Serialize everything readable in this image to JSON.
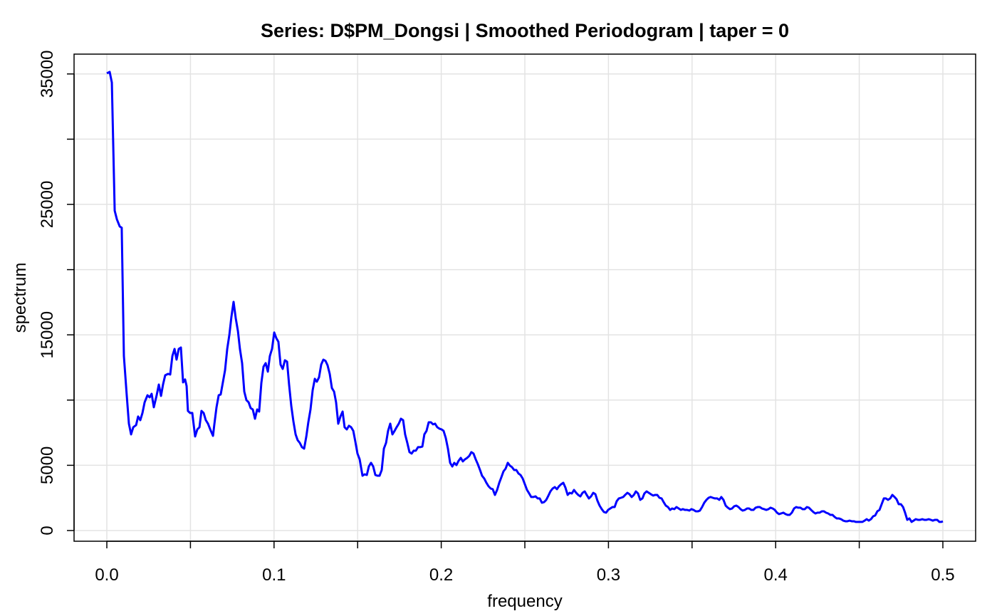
{
  "chart_data": {
    "type": "line",
    "title": "Series: D$PM_Dongsi  |  Smoothed Periodogram  |  taper = 0",
    "x_label": "frequency",
    "y_label": "spectrum",
    "color": "#0000ff",
    "grid": true,
    "xlim": [
      -0.0196,
      0.5196
    ],
    "ylim": [
      -820,
      36520
    ],
    "xticks": [
      {
        "value": 0,
        "label": "0.0"
      },
      0.1,
      0.2,
      0.3,
      0.4,
      0.5
    ],
    "minor_xticks": [
      0.05,
      0.15,
      0.25,
      0.35,
      0.45
    ],
    "yticks": [
      0,
      5000,
      15000,
      25000,
      35000
    ],
    "minor_yticks": [
      10000,
      20000,
      30000
    ],
    "x": [
      0,
      0.0017,
      0.003,
      0.0047,
      0.006,
      0.0077,
      0.0089,
      0.0102,
      0.0119,
      0.0132,
      0.0145,
      0.0158,
      0.0175,
      0.0187,
      0.02,
      0.0213,
      0.0226,
      0.0243,
      0.0256,
      0.0268,
      0.0281,
      0.0298,
      0.0311,
      0.0324,
      0.0336,
      0.0349,
      0.0366,
      0.0379,
      0.0392,
      0.0405,
      0.0417,
      0.043,
      0.0443,
      0.0456,
      0.0468,
      0.0477,
      0.0485,
      0.0498,
      0.0511,
      0.0528,
      0.0541,
      0.0554,
      0.0566,
      0.0579,
      0.0592,
      0.0605,
      0.0622,
      0.0635,
      0.0643,
      0.0656,
      0.0669,
      0.0681,
      0.0694,
      0.0707,
      0.072,
      0.0733,
      0.0745,
      0.0758,
      0.0771,
      0.0784,
      0.0796,
      0.0809,
      0.0822,
      0.0835,
      0.0848,
      0.086,
      0.0873,
      0.0886,
      0.0899,
      0.0911,
      0.0924,
      0.0937,
      0.095,
      0.0963,
      0.0975,
      0.0988,
      0.1001,
      0.1014,
      0.1026,
      0.1039,
      0.1052,
      0.1065,
      0.1078,
      0.109,
      0.1103,
      0.1116,
      0.1129,
      0.1141,
      0.1154,
      0.1167,
      0.118,
      0.1193,
      0.1205,
      0.1218,
      0.1231,
      0.1244,
      0.1256,
      0.1269,
      0.1282,
      0.1295,
      0.1308,
      0.132,
      0.1333,
      0.1346,
      0.1359,
      0.1371,
      0.1384,
      0.1397,
      0.141,
      0.1422,
      0.1435,
      0.1448,
      0.1461,
      0.1474,
      0.1486,
      0.1499,
      0.1512,
      0.1529,
      0.1542,
      0.1555,
      0.1567,
      0.158,
      0.1593,
      0.1606,
      0.1618,
      0.1631,
      0.1644,
      0.1657,
      0.167,
      0.1682,
      0.1695,
      0.1708,
      0.1721,
      0.1733,
      0.1746,
      0.1759,
      0.1772,
      0.1784,
      0.1797,
      0.181,
      0.1823,
      0.1835,
      0.1848,
      0.1861,
      0.1874,
      0.1887,
      0.1899,
      0.1912,
      0.1925,
      0.1938,
      0.1951,
      0.1963,
      0.1976,
      0.1989,
      0.2002,
      0.2014,
      0.2027,
      0.204,
      0.2053,
      0.2066,
      0.2078,
      0.2091,
      0.2104,
      0.2117,
      0.2129,
      0.2142,
      0.2155,
      0.2168,
      0.218,
      0.2193,
      0.2206,
      0.2219,
      0.2232,
      0.2244,
      0.2257,
      0.227,
      0.2283,
      0.2296,
      0.2308,
      0.2321,
      0.2334,
      0.2347,
      0.236,
      0.2372,
      0.2385,
      0.2398,
      0.2411,
      0.2423,
      0.2436,
      0.2449,
      0.2462,
      0.2474,
      0.2487,
      0.25,
      0.2513,
      0.2526,
      0.2538,
      0.2551,
      0.2564,
      0.2577,
      0.2589,
      0.2602,
      0.2615,
      0.2628,
      0.2641,
      0.2653,
      0.2666,
      0.2679,
      0.2692,
      0.2704,
      0.2717,
      0.273,
      0.2743,
      0.2756,
      0.2768,
      0.2781,
      0.2794,
      0.2807,
      0.2819,
      0.2832,
      0.2845,
      0.2858,
      0.287,
      0.2883,
      0.2896,
      0.2909,
      0.2922,
      0.2934,
      0.2947,
      0.296,
      0.2973,
      0.2986,
      0.2998,
      0.3011,
      0.3024,
      0.3037,
      0.3049,
      0.3062,
      0.3075,
      0.3088,
      0.31,
      0.3113,
      0.3126,
      0.3139,
      0.3152,
      0.3164,
      0.3177,
      0.319,
      0.3203,
      0.3215,
      0.3228,
      0.3241,
      0.3254,
      0.3267,
      0.3279,
      0.3292,
      0.3305,
      0.3318,
      0.333,
      0.3343,
      0.3356,
      0.3369,
      0.3381,
      0.3394,
      0.3407,
      0.342,
      0.3433,
      0.3445,
      0.3458,
      0.3471,
      0.3484,
      0.3496,
      0.3509,
      0.3522,
      0.3535,
      0.3547,
      0.356,
      0.3573,
      0.3586,
      0.3599,
      0.3611,
      0.3624,
      0.3637,
      0.365,
      0.3663,
      0.3675,
      0.3688,
      0.3701,
      0.3714,
      0.3727,
      0.3739,
      0.3752,
      0.3765,
      0.3778,
      0.379,
      0.3803,
      0.3816,
      0.3829,
      0.3841,
      0.3854,
      0.3867,
      0.388,
      0.3892,
      0.3905,
      0.3918,
      0.3931,
      0.3944,
      0.3957,
      0.3969,
      0.3982,
      0.3995,
      0.4008,
      0.402,
      0.4033,
      0.4046,
      0.4059,
      0.4071,
      0.4084,
      0.4097,
      0.411,
      0.4123,
      0.4135,
      0.4148,
      0.4161,
      0.4174,
      0.4187,
      0.4199,
      0.4212,
      0.4225,
      0.4238,
      0.425,
      0.4263,
      0.4276,
      0.4289,
      0.4301,
      0.4314,
      0.4327,
      0.434,
      0.4353,
      0.4365,
      0.4378,
      0.4391,
      0.4404,
      0.4417,
      0.4429,
      0.4442,
      0.4455,
      0.4468,
      0.448,
      0.4493,
      0.4506,
      0.4519,
      0.4532,
      0.4544,
      0.4557,
      0.457,
      0.4583,
      0.4595,
      0.4608,
      0.4621,
      0.4634,
      0.4647,
      0.4659,
      0.4672,
      0.4685,
      0.4698,
      0.4711,
      0.4723,
      0.4736,
      0.4749,
      0.4762,
      0.4774,
      0.4787,
      0.48,
      0.4813,
      0.4825,
      0.4838,
      0.4851,
      0.4864,
      0.4877,
      0.4889,
      0.4902,
      0.4915,
      0.4928,
      0.494,
      0.4953,
      0.4966,
      0.4979,
      0.4991,
      0.5
    ],
    "values": [
      35050,
      35160,
      34340,
      24520,
      23860,
      23310,
      23210,
      13380,
      10370,
      8190,
      7370,
      7920,
      8080,
      8740,
      8460,
      9010,
      9830,
      10370,
      10210,
      10480,
      9450,
      10370,
      11190,
      10320,
      11190,
      11900,
      12010,
      11960,
      13380,
      13920,
      13100,
      13920,
      14030,
      11360,
      11580,
      11080,
      9170,
      9010,
      9010,
      7210,
      7750,
      7920,
      9170,
      9010,
      8460,
      8190,
      7640,
      7260,
      8140,
      9450,
      10370,
      10430,
      11360,
      12290,
      13920,
      15020,
      16380,
      17530,
      16270,
      15290,
      13920,
      12830,
      10650,
      9990,
      9830,
      9390,
      9280,
      8570,
      9280,
      9120,
      11300,
      12560,
      12830,
      12180,
      13380,
      13920,
      15180,
      14740,
      14470,
      12720,
      12390,
      13050,
      12940,
      11190,
      9560,
      8350,
      7370,
      6930,
      6720,
      6390,
      6280,
      7210,
      8300,
      9280,
      10760,
      11630,
      11410,
      11740,
      12720,
      13100,
      13000,
      12670,
      12010,
      10920,
      10650,
      9830,
      8190,
      8740,
      9120,
      7920,
      7750,
      8030,
      7920,
      7640,
      6830,
      5900,
      5460,
      4200,
      4310,
      4260,
      4910,
      5190,
      4910,
      4260,
      4200,
      4200,
      4640,
      6280,
      6720,
      7640,
      8190,
      7370,
      7640,
      7920,
      8190,
      8570,
      8460,
      7370,
      6720,
      6010,
      5900,
      6120,
      6120,
      6390,
      6390,
      6440,
      7370,
      7640,
      8300,
      8300,
      8140,
      8190,
      7920,
      7810,
      7750,
      7640,
      7100,
      6280,
      5190,
      4910,
      5190,
      5020,
      5350,
      5570,
      5300,
      5460,
      5570,
      5730,
      6010,
      5900,
      5460,
      5080,
      4640,
      4200,
      3990,
      3660,
      3390,
      3220,
      3170,
      2730,
      3110,
      3660,
      4100,
      4530,
      4750,
      5190,
      4970,
      4860,
      4640,
      4640,
      4370,
      4260,
      3990,
      3550,
      3110,
      2840,
      2570,
      2570,
      2620,
      2460,
      2460,
      2130,
      2180,
      2350,
      2680,
      3000,
      3220,
      3330,
      3170,
      3390,
      3550,
      3660,
      3280,
      2730,
      2890,
      2840,
      3110,
      2890,
      2730,
      2620,
      2890,
      3000,
      2730,
      2460,
      2620,
      2890,
      2780,
      2290,
      1910,
      1640,
      1420,
      1370,
      1580,
      1690,
      1800,
      1800,
      2240,
      2460,
      2510,
      2570,
      2730,
      2890,
      2780,
      2570,
      2730,
      3000,
      2840,
      2350,
      2460,
      2840,
      3000,
      2890,
      2780,
      2680,
      2730,
      2730,
      2510,
      2460,
      2180,
      1910,
      1800,
      1580,
      1690,
      1640,
      1800,
      1690,
      1580,
      1640,
      1580,
      1580,
      1530,
      1640,
      1580,
      1470,
      1470,
      1530,
      1800,
      2130,
      2350,
      2510,
      2570,
      2510,
      2460,
      2460,
      2350,
      2570,
      2350,
      1910,
      1750,
      1640,
      1690,
      1860,
      1910,
      1800,
      1640,
      1530,
      1580,
      1690,
      1690,
      1580,
      1580,
      1750,
      1800,
      1800,
      1690,
      1640,
      1580,
      1640,
      1750,
      1690,
      1580,
      1370,
      1260,
      1310,
      1370,
      1260,
      1200,
      1200,
      1370,
      1690,
      1800,
      1750,
      1750,
      1640,
      1640,
      1800,
      1750,
      1580,
      1420,
      1310,
      1370,
      1370,
      1470,
      1470,
      1370,
      1310,
      1200,
      1200,
      1040,
      930,
      930,
      870,
      760,
      710,
      710,
      760,
      710,
      710,
      660,
      660,
      660,
      660,
      760,
      870,
      760,
      870,
      1090,
      1150,
      1470,
      1580,
      2020,
      2460,
      2460,
      2350,
      2460,
      2730,
      2570,
      2400,
      2020,
      2020,
      1800,
      1370,
      820,
      930,
      660,
      760,
      870,
      820,
      820,
      870,
      820,
      820,
      870,
      820,
      760,
      820,
      820,
      660,
      660,
      710
    ]
  }
}
